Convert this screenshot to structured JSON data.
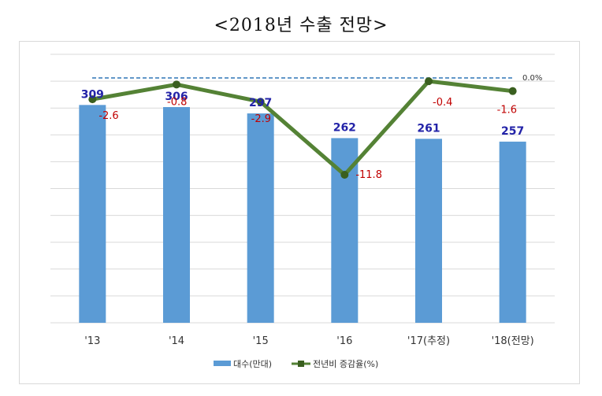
{
  "title": "<2018년 수출 전망>",
  "chart_data": {
    "type": "bar+line",
    "categories": [
      "'13",
      "'14",
      "'15",
      "'16",
      "'17(추정)",
      "'18(전망)"
    ],
    "series": [
      {
        "name": "대수(만대)",
        "type": "bar",
        "color": "#5b9bd5",
        "values": [
          309,
          306,
          297,
          262,
          261,
          257
        ],
        "labels": [
          "309",
          "306",
          "297",
          "262",
          "261",
          "257"
        ]
      },
      {
        "name": "전년비 증감율(%)",
        "type": "line",
        "color": "#548235",
        "values": [
          -2.6,
          -0.8,
          -2.9,
          -11.8,
          -0.4,
          -1.6
        ],
        "labels": [
          "-2.6",
          "-0.8",
          "-2.9",
          "-11.8",
          "-0.4",
          "-1.6"
        ]
      }
    ],
    "reference_line": {
      "value": 0.0,
      "label": "0.0%",
      "color": "#2e75b6"
    },
    "bar_axis_range": [
      0,
      400
    ],
    "line_axis_range": [
      -14,
      2
    ],
    "grid": true,
    "legend_position": "bottom"
  }
}
